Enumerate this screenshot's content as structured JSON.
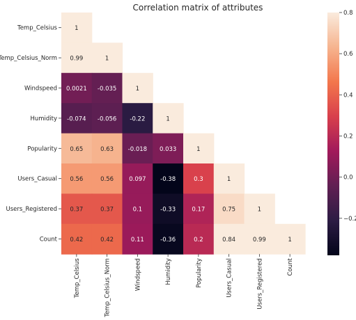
{
  "chart_data": {
    "type": "heatmap",
    "title": "Correlation matrix of attributes",
    "xlabel": "",
    "ylabel": "",
    "labels": [
      "Temp_Celsius",
      "Temp_Celsius_Norm",
      "Windspeed",
      "Humidity",
      "Popularity",
      "Users_Casual",
      "Users_Registered",
      "Count"
    ],
    "mask": "upper-triangle",
    "values": [
      [
        1
      ],
      [
        0.99,
        1
      ],
      [
        0.0021,
        -0.035,
        1
      ],
      [
        -0.074,
        -0.056,
        -0.22,
        1
      ],
      [
        0.65,
        0.63,
        -0.018,
        0.033,
        1
      ],
      [
        0.56,
        0.56,
        0.097,
        -0.38,
        0.3,
        1
      ],
      [
        0.37,
        0.37,
        0.1,
        -0.33,
        0.17,
        0.75,
        1
      ],
      [
        0.42,
        0.42,
        0.11,
        -0.36,
        0.2,
        0.84,
        0.99,
        1
      ]
    ],
    "value_labels": [
      [
        "1"
      ],
      [
        "0.99",
        "1"
      ],
      [
        "0.0021",
        "-0.035",
        "1"
      ],
      [
        "-0.074",
        "-0.056",
        "-0.22",
        "1"
      ],
      [
        "0.65",
        "0.63",
        "-0.018",
        "0.033",
        "1"
      ],
      [
        "0.56",
        "0.56",
        "0.097",
        "-0.38",
        "0.3",
        "1"
      ],
      [
        "0.37",
        "0.37",
        "0.1",
        "-0.33",
        "0.17",
        "0.75",
        "1"
      ],
      [
        "0.42",
        "0.42",
        "0.11",
        "-0.36",
        "0.2",
        "0.84",
        "0.99",
        "1"
      ]
    ],
    "colorbar": {
      "range": [
        -0.38,
        0.8
      ],
      "ticks": [
        -0.2,
        0.0,
        0.2,
        0.4,
        0.6,
        0.8
      ],
      "tick_labels": [
        "−0.2",
        "0.0",
        "0.2",
        "0.4",
        "0.6",
        "0.8"
      ],
      "colormap": "rocket",
      "stops": [
        "#03051a",
        "#2c1c44",
        "#611f53",
        "#a11a5b",
        "#d83f4c",
        "#f3774c",
        "#f6b48f",
        "#faebdd"
      ]
    },
    "grid": false
  }
}
